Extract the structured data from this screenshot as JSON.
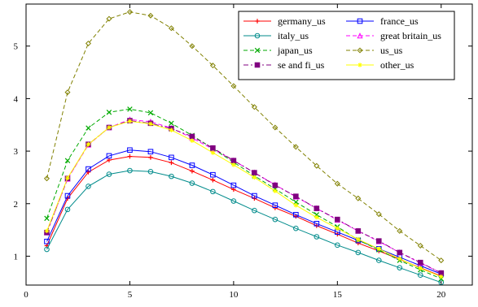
{
  "chart_data": {
    "type": "line",
    "title": "",
    "xlabel": "",
    "ylabel": "",
    "xlim": [
      0,
      21.5
    ],
    "ylim": [
      0.45,
      5.8
    ],
    "x_ticks": [
      0,
      5,
      10,
      15,
      20
    ],
    "y_ticks": [
      1,
      2,
      3,
      4,
      5
    ],
    "grid": false,
    "legend_position": "top-right",
    "x": [
      1,
      2,
      3,
      4,
      5,
      6,
      7,
      8,
      9,
      10,
      11,
      12,
      13,
      14,
      15,
      16,
      17,
      18,
      19,
      20
    ],
    "series": [
      {
        "name": "germany_us",
        "color": "#ff0000",
        "marker": "plus",
        "dash": "solid",
        "values": [
          1.2,
          2.1,
          2.6,
          2.83,
          2.9,
          2.88,
          2.78,
          2.62,
          2.45,
          2.27,
          2.1,
          1.92,
          1.76,
          1.58,
          1.42,
          1.25,
          1.1,
          0.94,
          0.78,
          0.62
        ]
      },
      {
        "name": "france_us",
        "color": "#0000ff",
        "marker": "square",
        "dash": "solid",
        "values": [
          1.28,
          2.15,
          2.66,
          2.91,
          3.02,
          2.99,
          2.88,
          2.73,
          2.55,
          2.35,
          2.15,
          1.97,
          1.79,
          1.62,
          1.46,
          1.3,
          1.14,
          0.98,
          0.82,
          0.66
        ]
      },
      {
        "name": "italy_us",
        "color": "#008b8b",
        "marker": "circle",
        "dash": "solid",
        "values": [
          1.13,
          1.89,
          2.33,
          2.56,
          2.63,
          2.61,
          2.52,
          2.39,
          2.23,
          2.05,
          1.87,
          1.7,
          1.53,
          1.37,
          1.21,
          1.07,
          0.92,
          0.78,
          0.64,
          0.5
        ]
      },
      {
        "name": "great britain_us",
        "color": "#ff00ff",
        "marker": "triangle",
        "dash": "dashed",
        "values": [
          1.45,
          2.47,
          3.12,
          3.45,
          3.6,
          3.56,
          3.44,
          3.25,
          3.04,
          2.82,
          2.59,
          2.36,
          2.13,
          1.91,
          1.69,
          1.48,
          1.28,
          1.07,
          0.87,
          0.68
        ]
      },
      {
        "name": "japan_us",
        "color": "#00aa00",
        "marker": "x",
        "dash": "dashed",
        "values": [
          1.72,
          2.82,
          3.44,
          3.74,
          3.8,
          3.73,
          3.53,
          3.3,
          3.05,
          2.79,
          2.53,
          2.28,
          2.03,
          1.79,
          1.56,
          1.31,
          1.12,
          0.92,
          0.74,
          0.57
        ]
      },
      {
        "name": "us_us",
        "color": "#808000",
        "marker": "diamond",
        "dash": "dashed",
        "values": [
          2.48,
          4.12,
          5.05,
          5.52,
          5.65,
          5.58,
          5.34,
          5.0,
          4.63,
          4.24,
          3.84,
          3.45,
          3.08,
          2.72,
          2.38,
          2.1,
          1.8,
          1.48,
          1.2,
          0.92
        ]
      },
      {
        "name": "se and fi_us",
        "color": "#800080",
        "marker": "filled-square",
        "dash": "dashdot",
        "values": [
          1.45,
          2.48,
          3.13,
          3.45,
          3.58,
          3.53,
          3.43,
          3.28,
          3.06,
          2.82,
          2.59,
          2.35,
          2.14,
          1.91,
          1.7,
          1.48,
          1.29,
          1.07,
          0.88,
          0.68
        ]
      },
      {
        "name": "other_us",
        "color": "#ffff00",
        "marker": "star",
        "dash": "solid",
        "values": [
          1.48,
          2.49,
          3.13,
          3.45,
          3.57,
          3.52,
          3.4,
          3.2,
          2.97,
          2.74,
          2.5,
          2.24,
          1.97,
          1.74,
          1.53,
          1.32,
          1.14,
          0.95,
          0.77,
          0.61
        ]
      }
    ]
  }
}
